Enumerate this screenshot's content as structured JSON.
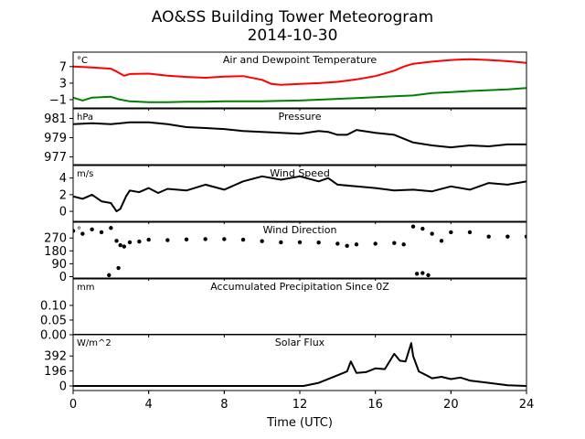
{
  "figure": {
    "title_line1": "AO&SS Building Tower Meteorogram",
    "title_line2": "2014-10-30"
  },
  "chart_data": [
    {
      "type": "line",
      "panel": "temperature",
      "label": "Air and Dewpoint Temperature",
      "unit": "°C",
      "ylim": [
        -3,
        10.5
      ],
      "yticks": [
        -1,
        3,
        7
      ],
      "ytick_labels": [
        "−1",
        "3",
        "7"
      ],
      "series": [
        {
          "color": "#ff0000",
          "x": [
            0,
            1,
            2,
            2.3,
            2.7,
            3,
            4,
            5,
            6,
            7,
            8,
            9,
            10,
            10.5,
            11,
            12,
            13,
            14,
            15,
            16,
            17,
            17.5,
            18,
            19,
            20,
            21,
            22,
            23,
            24
          ],
          "y": [
            7.0,
            6.8,
            6.5,
            5.8,
            4.8,
            5.2,
            5.3,
            4.8,
            4.5,
            4.3,
            4.6,
            4.7,
            3.8,
            2.8,
            2.6,
            2.8,
            3.0,
            3.3,
            3.9,
            4.7,
            6.0,
            7.0,
            7.7,
            8.2,
            8.6,
            8.8,
            8.6,
            8.3,
            7.9
          ]
        },
        {
          "color": "#008000",
          "x": [
            0,
            0.5,
            1,
            2,
            2.4,
            3,
            4,
            5,
            6,
            7,
            8,
            9,
            10,
            11,
            12,
            13,
            14,
            15,
            16,
            17,
            18,
            19,
            20,
            21,
            22,
            23,
            24
          ],
          "y": [
            -0.5,
            -1.2,
            -0.5,
            -0.3,
            -0.9,
            -1.4,
            -1.6,
            -1.6,
            -1.5,
            -1.5,
            -1.4,
            -1.4,
            -1.4,
            -1.3,
            -1.2,
            -1.0,
            -0.8,
            -0.6,
            -0.4,
            -0.2,
            0.0,
            0.6,
            0.8,
            1.1,
            1.3,
            1.5,
            1.8
          ]
        }
      ]
    },
    {
      "type": "line",
      "panel": "pressure",
      "label": "Pressure",
      "unit": "hPa",
      "ylim": [
        976.2,
        982.0
      ],
      "yticks": [
        977,
        979,
        981
      ],
      "ytick_labels": [
        "977",
        "979",
        "981"
      ],
      "series": [
        {
          "color": "#000000",
          "x": [
            0,
            1,
            2,
            3,
            4,
            5,
            6,
            7,
            8,
            9,
            10,
            11,
            12,
            13,
            13.5,
            14,
            14.5,
            15,
            16,
            17,
            18,
            19,
            20,
            21,
            22,
            23,
            24
          ],
          "y": [
            980.4,
            980.5,
            980.4,
            980.6,
            980.6,
            980.4,
            980.1,
            980.0,
            979.9,
            979.7,
            979.6,
            979.5,
            979.4,
            979.7,
            979.6,
            979.3,
            979.3,
            979.8,
            979.5,
            979.3,
            978.5,
            978.2,
            978.0,
            978.2,
            978.1,
            978.3,
            978.3
          ]
        }
      ]
    },
    {
      "type": "line",
      "panel": "wind_speed",
      "label": "Wind Speed",
      "unit": "m/s",
      "ylim": [
        -1.2,
        5.5
      ],
      "yticks": [
        0,
        2,
        4
      ],
      "ytick_labels": [
        "0",
        "2",
        "4"
      ],
      "series": [
        {
          "color": "#000000",
          "x": [
            0,
            0.5,
            1,
            1.5,
            2,
            2.3,
            2.5,
            2.8,
            3,
            3.5,
            4,
            4.5,
            5,
            6,
            7,
            8,
            9,
            10,
            11,
            12,
            13,
            13.5,
            14,
            15,
            16,
            17,
            18,
            19,
            20,
            21,
            22,
            23,
            24
          ],
          "y": [
            1.8,
            1.5,
            2.0,
            1.2,
            1.0,
            0.0,
            0.3,
            1.8,
            2.5,
            2.3,
            2.8,
            2.2,
            2.7,
            2.5,
            3.2,
            2.6,
            3.6,
            4.2,
            3.8,
            4.2,
            3.6,
            4.0,
            3.2,
            3.0,
            2.8,
            2.5,
            2.6,
            2.4,
            3.0,
            2.6,
            3.4,
            3.2,
            3.6
          ]
        }
      ]
    },
    {
      "type": "scatter",
      "panel": "wind_direction",
      "label": "Wind Direction",
      "unit": "°",
      "ylim": [
        -10,
        380
      ],
      "yticks": [
        0,
        90,
        180,
        270
      ],
      "ytick_labels": [
        "0",
        "90",
        "180",
        "270"
      ],
      "series": [
        {
          "color": "#000000",
          "x": [
            0,
            0.5,
            1,
            1.5,
            2,
            2.3,
            2.5,
            2.7,
            3,
            3.5,
            4,
            5,
            6,
            7,
            8,
            9,
            10,
            11,
            12,
            13,
            14,
            14.5,
            15,
            16,
            17,
            17.5,
            18,
            18.5,
            19,
            19.5,
            20,
            21,
            22,
            23,
            24,
            1.9,
            2.4,
            18.2,
            18.5,
            18.8
          ],
          "y": [
            320,
            300,
            330,
            310,
            340,
            250,
            220,
            210,
            240,
            245,
            258,
            255,
            260,
            262,
            262,
            258,
            248,
            240,
            240,
            238,
            230,
            215,
            225,
            230,
            235,
            225,
            350,
            335,
            300,
            250,
            310,
            310,
            280,
            280,
            280,
            10,
            60,
            20,
            25,
            10
          ]
        }
      ]
    },
    {
      "type": "line",
      "panel": "precipitation",
      "label": "Accumulated Precipitation Since 0Z",
      "unit": "mm",
      "ylim": [
        0,
        0.19
      ],
      "yticks": [
        0.0,
        0.05,
        0.1
      ],
      "ytick_labels": [
        "0.00",
        "0.05",
        "0.10"
      ],
      "series": [
        {
          "color": "#000000",
          "x": [
            0,
            24
          ],
          "y": [
            0,
            0
          ]
        }
      ]
    },
    {
      "type": "line",
      "panel": "solar_flux",
      "label": "Solar Flux",
      "unit": "W/m^2",
      "ylim": [
        -60,
        670
      ],
      "yticks": [
        0,
        196,
        392
      ],
      "ytick_labels": [
        "0",
        "196",
        "392"
      ],
      "series": [
        {
          "color": "#000000",
          "x": [
            0,
            12.2,
            13,
            14,
            14.5,
            14.7,
            15,
            15.5,
            16,
            16.5,
            17,
            17.3,
            17.6,
            17.9,
            18,
            18.3,
            18.7,
            19,
            19.5,
            20,
            20.5,
            21,
            22,
            23,
            24
          ],
          "y": [
            0,
            0,
            40,
            140,
            190,
            320,
            170,
            180,
            230,
            220,
            420,
            330,
            320,
            560,
            390,
            190,
            140,
            100,
            120,
            90,
            110,
            70,
            40,
            10,
            0
          ]
        }
      ]
    }
  ],
  "x_axis": {
    "label": "Time (UTC)",
    "xlim": [
      0,
      24
    ],
    "ticks": [
      0,
      4,
      8,
      12,
      16,
      20,
      24
    ],
    "tick_labels": [
      "0",
      "4",
      "8",
      "12",
      "16",
      "20",
      "24"
    ]
  }
}
